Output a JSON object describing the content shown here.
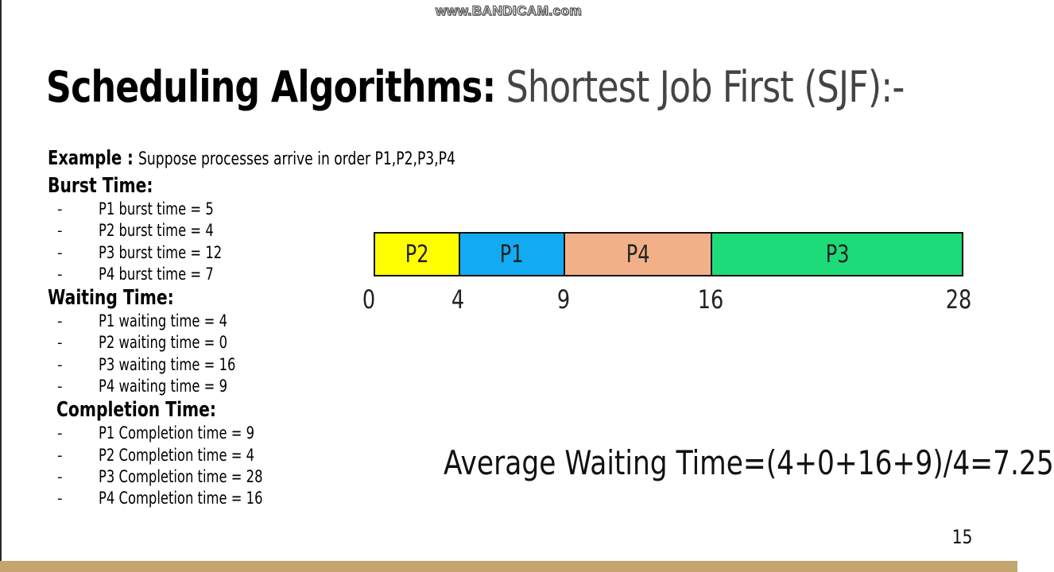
{
  "watermark": "www.BANDICAM.com",
  "title": {
    "bold": "Scheduling Algorithms:",
    "light": "Shortest Job First (SJF):-"
  },
  "example": {
    "label": "Example :",
    "text": "Suppose processes arrive in order P1,P2,P3,P4"
  },
  "sections": [
    {
      "heading": "Burst Time:",
      "items": [
        "P1 burst time = 5",
        "P2 burst time = 4",
        "P3 burst time = 12",
        "P4 burst time = 7"
      ]
    },
    {
      "heading": "Waiting Time:",
      "items": [
        "P1 waiting time = 4",
        "P2 waiting time = 0",
        "P3 waiting time = 16",
        "P4 waiting time = 9"
      ]
    },
    {
      "heading": "Completion Time:",
      "items": [
        "P1 Completion time = 9",
        "P2 Completion time = 4",
        "P3 Completion time = 28",
        "P4 Completion time = 16"
      ]
    }
  ],
  "bullet": "-",
  "gantt": {
    "total": 28,
    "segments": [
      {
        "label": "P2",
        "start": 0,
        "end": 4,
        "color": "#ffff00"
      },
      {
        "label": "P1",
        "start": 4,
        "end": 9,
        "color": "#12aaf0"
      },
      {
        "label": "P4",
        "start": 9,
        "end": 16,
        "color": "#f2b088"
      },
      {
        "label": "P3",
        "start": 16,
        "end": 28,
        "color": "#1ddb78"
      }
    ],
    "ticks": [
      "0",
      "4",
      "9",
      "16",
      "28"
    ]
  },
  "average": "Average Waiting Time=(4+0+16+9)/4=7.25",
  "page_number": "15",
  "colors": {
    "footer": "#c4a56d"
  }
}
